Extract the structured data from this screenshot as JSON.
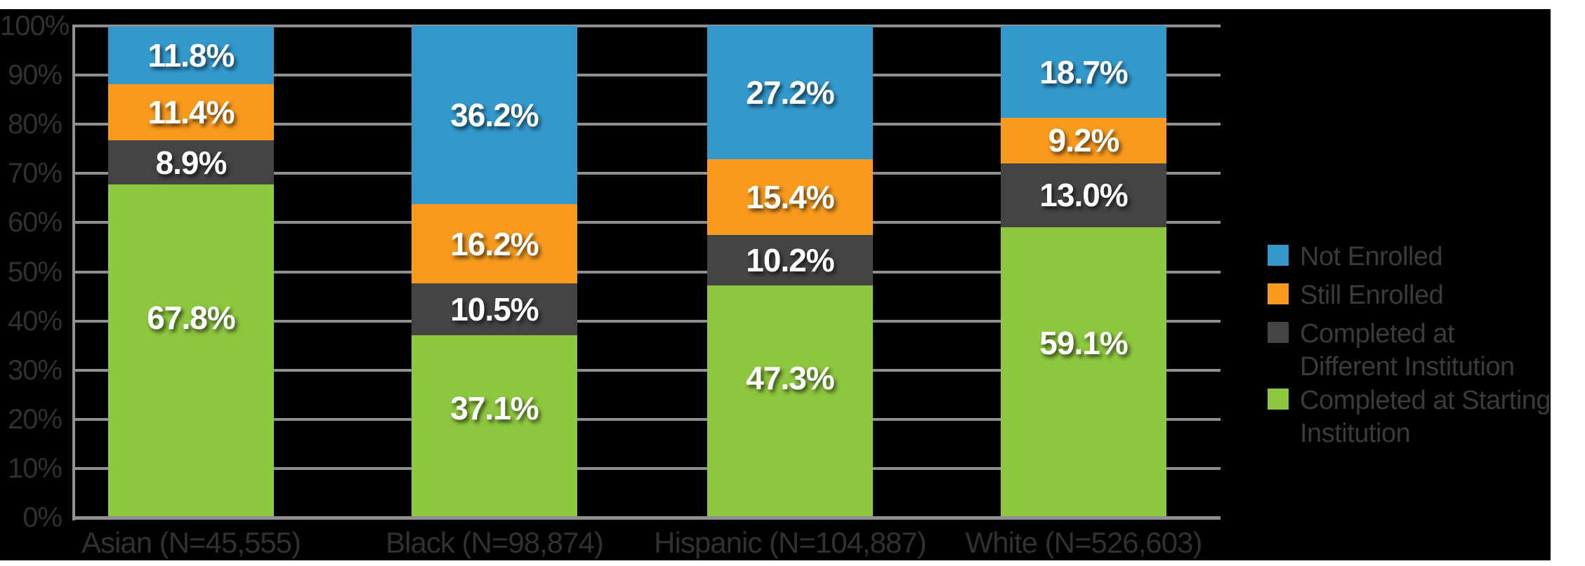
{
  "colors": {
    "blue": "#3399cd",
    "orange": "#f79a1e",
    "dark_gray": "#464344",
    "green": "#8dc63f",
    "gridline": "#8e9093",
    "axis_text": "#333031",
    "legend_text": "#3e3a3b",
    "value_label_text": "#ffffff",
    "canvas_background": "#000000",
    "page_margin": "#ffffff"
  },
  "chart_data": {
    "type": "bar",
    "subtype": "stacked_percentage_column",
    "title": "",
    "xlabel": "",
    "ylabel": "",
    "grid": true,
    "background": "black",
    "categories": [
      "Asian (N=45,555)",
      "Black (N=98,874)",
      "Hispanic (N=104,887)",
      "White (N=526,603)"
    ],
    "series": [
      {
        "name": "Completed at Starting Institution",
        "color_key": "green",
        "values": [
          67.8,
          37.1,
          47.3,
          59.1
        ],
        "labels": [
          "67.8%",
          "37.1%",
          "47.3%",
          "59.1%"
        ]
      },
      {
        "name": "Completed at Different Institution",
        "color_key": "dark_gray",
        "values": [
          8.9,
          10.5,
          10.2,
          13.0
        ],
        "labels": [
          "8.9%",
          "10.5%",
          "10.2%",
          "13.0%"
        ]
      },
      {
        "name": "Still Enrolled",
        "color_key": "orange",
        "values": [
          11.4,
          16.2,
          15.4,
          9.2
        ],
        "labels": [
          "11.4%",
          "16.2%",
          "15.4%",
          "9.2%"
        ]
      },
      {
        "name": "Not Enrolled",
        "color_key": "blue",
        "values": [
          11.8,
          36.2,
          27.2,
          18.7
        ],
        "labels": [
          "11.8%",
          "36.2%",
          "27.2%",
          "18.7%"
        ]
      }
    ],
    "y_axis": {
      "min": 0,
      "max": 100,
      "step": 10,
      "tick_labels_top_to_bottom": [
        "100%",
        "90%",
        "80%",
        "70%",
        "60%",
        "50%",
        "40%",
        "30%",
        "20%",
        "10%",
        "0%"
      ]
    },
    "legend": {
      "position": "right",
      "items": [
        {
          "label": "Not Enrolled",
          "lines": [
            "Not Enrolled"
          ],
          "color_key": "blue"
        },
        {
          "label": "Still Enrolled",
          "lines": [
            "Still Enrolled"
          ],
          "color_key": "orange"
        },
        {
          "label": "Completed at Different Institution",
          "lines": [
            "Completed at",
            "Different Institution"
          ],
          "color_key": "dark_gray"
        },
        {
          "label": "Completed at Starting Institution",
          "lines": [
            "Completed at Starting",
            "Institution"
          ],
          "color_key": "green"
        }
      ]
    }
  }
}
